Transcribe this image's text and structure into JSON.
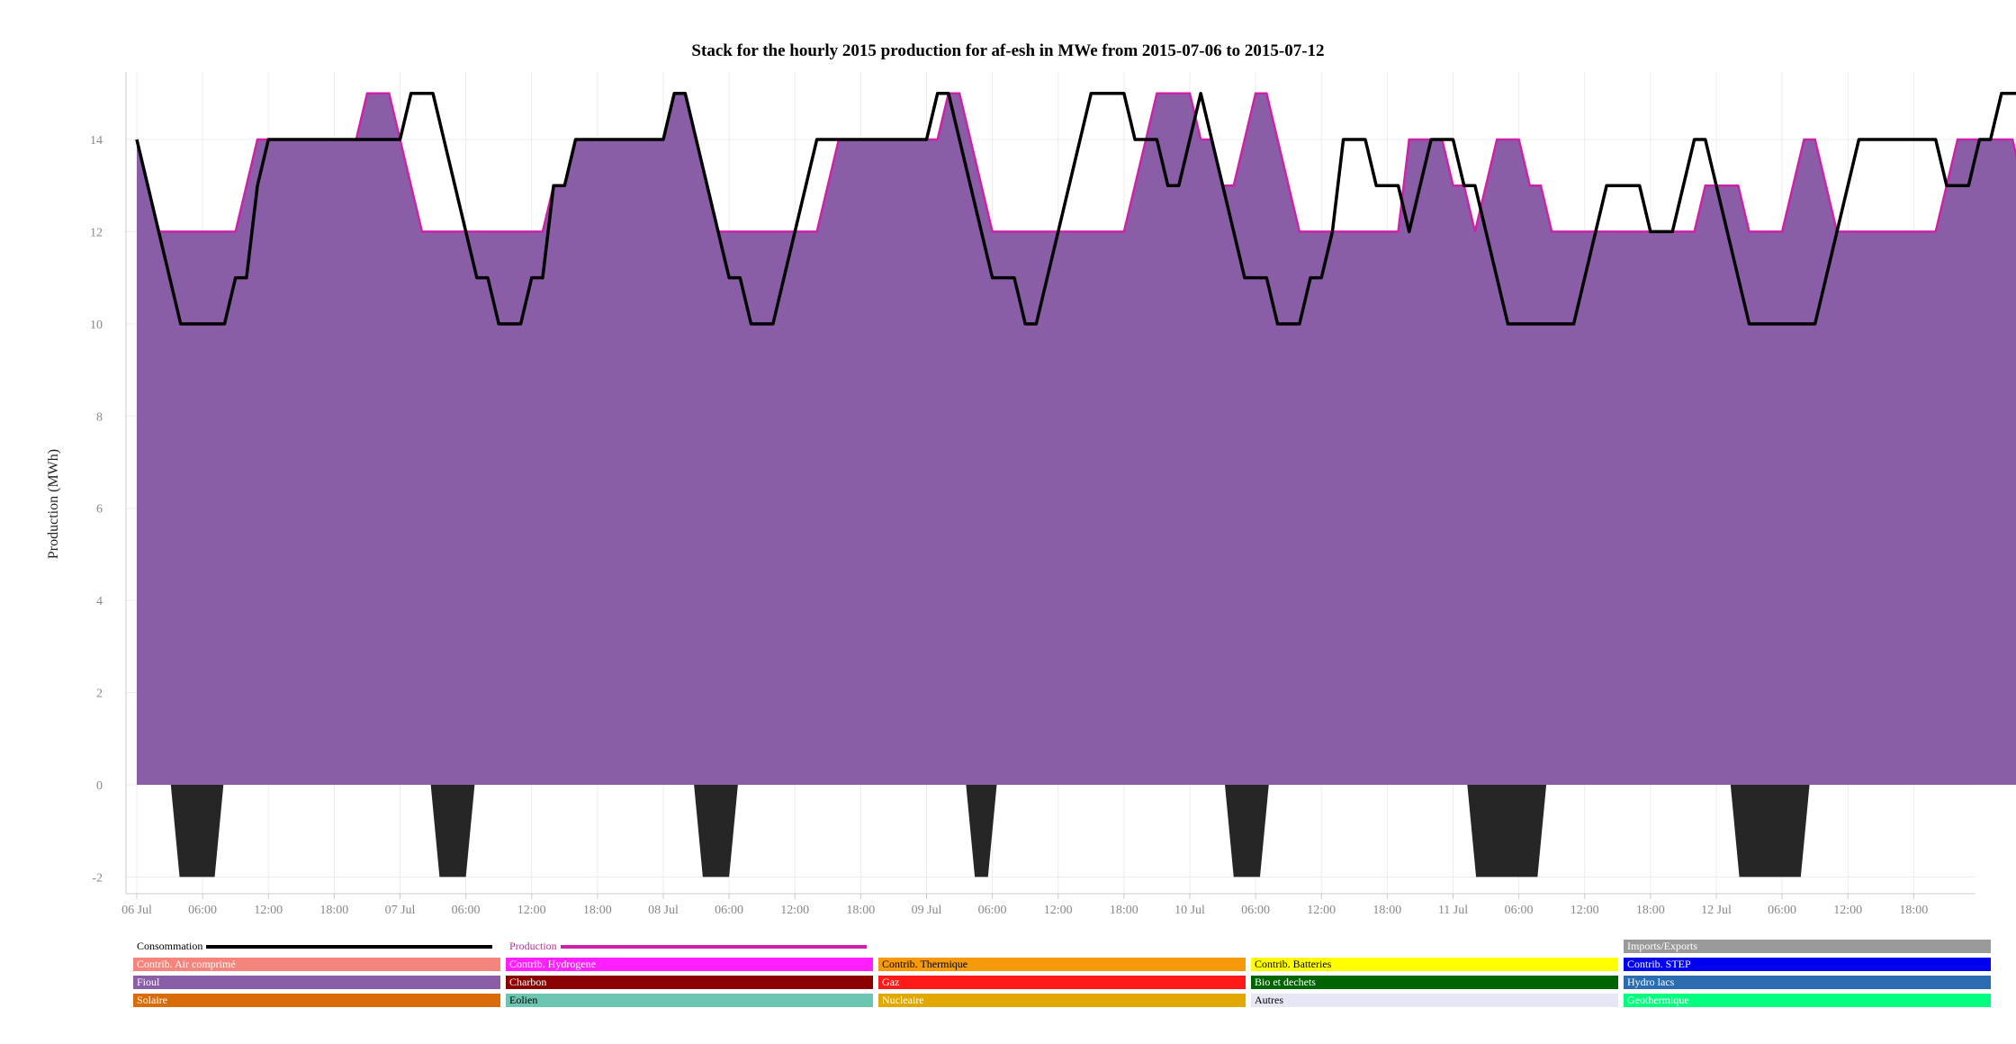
{
  "chart_data": {
    "type": "area",
    "title": "Stack for the hourly 2015 production for af-esh in MWe from 2015-07-06 to 2015-07-12",
    "ylabel": "Production (MWh)",
    "xlabel": "",
    "ylim": [
      -2,
      15.5
    ],
    "y_ticks": [
      -2,
      0,
      2,
      4,
      6,
      8,
      10,
      12,
      14
    ],
    "x_start": "2015-07-06 00:00",
    "x_ticks": [
      "06 Jul",
      "06:00",
      "12:00",
      "18:00",
      "07 Jul",
      "06:00",
      "12:00",
      "18:00",
      "08 Jul",
      "06:00",
      "12:00",
      "18:00",
      "09 Jul",
      "06:00",
      "12:00",
      "18:00",
      "10 Jul",
      "06:00",
      "12:00",
      "18:00",
      "11 Jul",
      "06:00",
      "12:00",
      "18:00",
      "12 Jul",
      "06:00",
      "12:00",
      "18:00"
    ],
    "grid": true,
    "colors": {
      "fioul": "#8a5ea6",
      "production_line": "#cc22aa",
      "consommation_line": "#000000",
      "negative_area": "#262626"
    },
    "series": {
      "fioul_hourly": [
        [
          14,
          13,
          12,
          12,
          12,
          12,
          12,
          12,
          12,
          12,
          13,
          14,
          14,
          14,
          14,
          14,
          14,
          14,
          14,
          14,
          14,
          15,
          15,
          15
        ],
        [
          14,
          13,
          12,
          12,
          12,
          12,
          12,
          12,
          12,
          12,
          12,
          12,
          12,
          12,
          13,
          13,
          14,
          14,
          14,
          14,
          14,
          14,
          14,
          14
        ],
        [
          14,
          15,
          15,
          14,
          13,
          12,
          12,
          12,
          12,
          12,
          12,
          12,
          12,
          12,
          12,
          13,
          14,
          14,
          14,
          14,
          14,
          14,
          14,
          14
        ],
        [
          14,
          14,
          15,
          15,
          14,
          13,
          12,
          12,
          12,
          12,
          12,
          12,
          12,
          12,
          12,
          12,
          12,
          12,
          12,
          13,
          14,
          15,
          15,
          15
        ],
        [
          15,
          14,
          14,
          13,
          13,
          14,
          15,
          15,
          14,
          13,
          12,
          12,
          12,
          12,
          12,
          12,
          12,
          12,
          12,
          12,
          14,
          14,
          14,
          14
        ],
        [
          13,
          13,
          12,
          13,
          14,
          14,
          14,
          13,
          13,
          12,
          12,
          12,
          12,
          12,
          12,
          12,
          12,
          12,
          12,
          12,
          12,
          12,
          12,
          13
        ],
        [
          13,
          13,
          13,
          12,
          12,
          12,
          12,
          13,
          14,
          14,
          13,
          12,
          12,
          12,
          12,
          12,
          12,
          12,
          12,
          12,
          12,
          13,
          14,
          14
        ],
        [
          14,
          14,
          14,
          14,
          13,
          13,
          14,
          14,
          15,
          15
        ]
      ],
      "consommation_hourly": [
        [
          14,
          13,
          12,
          11,
          10,
          10,
          10,
          10,
          10,
          11,
          11,
          13,
          14,
          14,
          14,
          14,
          14,
          14,
          14,
          14,
          14,
          14,
          14,
          14
        ],
        [
          14,
          15,
          15,
          15,
          14,
          13,
          12,
          11,
          11,
          10,
          10,
          10,
          11,
          11,
          13,
          13,
          14,
          14,
          14,
          14,
          14,
          14,
          14,
          14
        ],
        [
          14,
          15,
          15,
          14,
          13,
          12,
          11,
          11,
          10,
          10,
          10,
          11,
          12,
          13,
          14,
          14,
          14,
          14,
          14,
          14,
          14,
          14,
          14,
          14
        ],
        [
          14,
          15,
          15,
          14,
          13,
          12,
          11,
          11,
          11,
          10,
          10,
          11,
          12,
          13,
          14,
          15,
          15,
          15,
          15,
          14,
          14,
          14,
          13,
          13
        ],
        [
          14,
          15,
          14,
          13,
          12,
          11,
          11,
          11,
          10,
          10,
          10,
          11,
          11,
          12,
          14,
          14,
          14,
          13,
          13,
          13,
          12,
          13,
          14,
          14
        ],
        [
          14,
          13,
          13,
          12,
          11,
          10,
          10,
          10,
          10,
          10,
          10,
          10,
          11,
          12,
          13,
          13,
          13,
          13,
          12,
          12,
          12,
          13,
          14,
          14
        ],
        [
          13,
          12,
          11,
          10,
          10,
          10,
          10,
          10,
          10,
          10,
          11,
          12,
          13,
          14,
          14,
          14,
          14,
          14,
          14,
          14,
          14,
          13,
          13,
          13
        ],
        [
          14,
          14,
          15,
          15
        ]
      ],
      "negative_hourly": [
        [
          0,
          0,
          0,
          0,
          -2,
          -2,
          -2,
          -2,
          0,
          0,
          0,
          0,
          0,
          0,
          0,
          0,
          0,
          0,
          0,
          0,
          0,
          0,
          0,
          0
        ],
        [
          0,
          0,
          0,
          0,
          0,
          0,
          0,
          0,
          0,
          0,
          0,
          0,
          0,
          0,
          0,
          0,
          0,
          0,
          0,
          0,
          0,
          0,
          0,
          0
        ],
        [
          0,
          0,
          0,
          0,
          0,
          0,
          0,
          0,
          0,
          0,
          0,
          0,
          0,
          0,
          0,
          0,
          0,
          0,
          0,
          0,
          0,
          0,
          0,
          0
        ]
      ]
    }
  },
  "legend": {
    "consommation": "Consommation",
    "production": "Production",
    "items": [
      {
        "label": "Imports/Exports",
        "color": "#9a9a9a",
        "text": "#ffffff"
      },
      {
        "label": "Contrib. Air comprimé",
        "color": "#f4857c",
        "text": "#ffffff"
      },
      {
        "label": "Contrib. Hydrogene",
        "color": "#ff1fff",
        "text": "#ffffff"
      },
      {
        "label": "Contrib. Thermique",
        "color": "#f59a0a",
        "text": "#000000"
      },
      {
        "label": "Contrib. Batteries",
        "color": "#ffff00",
        "text": "#000000"
      },
      {
        "label": "Contrib. STEP",
        "color": "#0000ee",
        "text": "#ffffff"
      },
      {
        "label": "Fioul",
        "color": "#8a5ea6",
        "text": "#ffffff"
      },
      {
        "label": "Charbon",
        "color": "#8b0000",
        "text": "#ffffff"
      },
      {
        "label": "Gaz",
        "color": "#ff1a1a",
        "text": "#ffffff"
      },
      {
        "label": "Bio et dechets",
        "color": "#006400",
        "text": "#ffffff"
      },
      {
        "label": "Hydro lacs",
        "color": "#2b6cb0",
        "text": "#ffffff"
      },
      {
        "label": "Solaire",
        "color": "#d96c0a",
        "text": "#ffffff"
      },
      {
        "label": "Eolien",
        "color": "#6cc5b0",
        "text": "#000000"
      },
      {
        "label": "Nucleaire",
        "color": "#e0a800",
        "text": "#ffffff"
      },
      {
        "label": "Autres",
        "color": "#e6e6f5",
        "text": "#000000"
      },
      {
        "label": "Geothermique",
        "color": "#00ff7f",
        "text": "#ffffff"
      }
    ]
  }
}
